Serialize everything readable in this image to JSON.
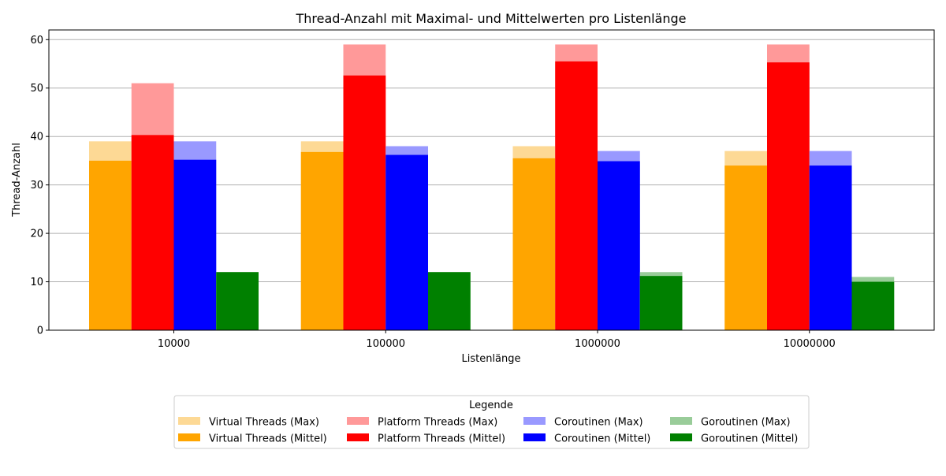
{
  "chart_data": {
    "type": "bar",
    "title": "Thread-Anzahl mit Maximal- und Mittelwerten pro Listenlänge",
    "xlabel": "Listenlänge",
    "ylabel": "Thread-Anzahl",
    "ylim": [
      0,
      62
    ],
    "yticks": [
      0,
      10,
      20,
      30,
      40,
      50,
      60
    ],
    "grid": "y",
    "categories": [
      "10000",
      "100000",
      "1000000",
      "10000000"
    ],
    "series": [
      {
        "group": "Virtual Threads",
        "max_name": "Virtual Threads (Max)",
        "mean_name": "Virtual Threads (Mittel)",
        "max": [
          39,
          39,
          38,
          37
        ],
        "mean": [
          35,
          36.8,
          35.5,
          34
        ],
        "max_color": "#fdd995",
        "mean_color": "#ffa500"
      },
      {
        "group": "Platform Threads",
        "max_name": "Platform Threads (Max)",
        "mean_name": "Platform Threads (Mittel)",
        "max": [
          51,
          59,
          59,
          59
        ],
        "mean": [
          40.3,
          52.6,
          55.5,
          55.3
        ],
        "max_color": "#ff9999",
        "mean_color": "#ff0000"
      },
      {
        "group": "Coroutinen",
        "max_name": "Coroutinen (Max)",
        "mean_name": "Coroutinen (Mittel)",
        "max": [
          39,
          38,
          37,
          37
        ],
        "mean": [
          35.2,
          36.2,
          34.9,
          34
        ],
        "max_color": "#9999ff",
        "mean_color": "#0000ff"
      },
      {
        "group": "Goroutinen",
        "max_name": "Goroutinen (Max)",
        "mean_name": "Goroutinen (Mittel)",
        "max": [
          12,
          12,
          12,
          11
        ],
        "mean": [
          12,
          12,
          11.2,
          10
        ],
        "max_color": "#99cc99",
        "mean_color": "#008000"
      }
    ],
    "legend": {
      "title": "Legende",
      "placement": "bottom-center",
      "columns": 4
    }
  }
}
